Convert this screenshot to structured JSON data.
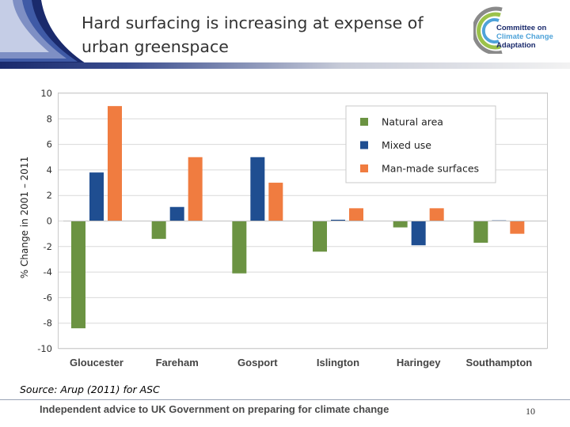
{
  "slide": {
    "title": "Hard surfacing is increasing at expense of urban greenspace",
    "source": "Source: Arup (2011) for ASC",
    "footer": "Independent advice to UK Government on preparing for climate change",
    "page_number": "10"
  },
  "logo": {
    "line1": "Committee on",
    "line2": "Climate Change",
    "line3": "Adaptation"
  },
  "colors": {
    "natural": "#6b9342",
    "mixed": "#1f4e91",
    "manmade": "#f07c40",
    "grid": "#d9d9d9",
    "axis_text": "#333333"
  },
  "chart_data": {
    "type": "bar",
    "title": "",
    "xlabel": "",
    "ylabel": "% Change in 2001 – 2011",
    "ylim": [
      -10,
      10
    ],
    "yticks": [
      -10,
      -8,
      -6,
      -4,
      -2,
      0,
      2,
      4,
      6,
      8,
      10
    ],
    "categories": [
      "Gloucester",
      "Fareham",
      "Gosport",
      "Islington",
      "Haringey",
      "Southampton"
    ],
    "series": [
      {
        "name": "Natural area",
        "values": [
          -8.4,
          -1.4,
          -4.1,
          -2.4,
          -0.5,
          -1.7
        ]
      },
      {
        "name": "Mixed use",
        "values": [
          3.8,
          1.1,
          5.0,
          0.1,
          -1.9,
          0.05
        ]
      },
      {
        "name": "Man-made surfaces",
        "values": [
          9.0,
          5.0,
          3.0,
          1.0,
          1.0,
          -1.0
        ]
      }
    ],
    "legend_position": "top-right",
    "grid": true
  }
}
